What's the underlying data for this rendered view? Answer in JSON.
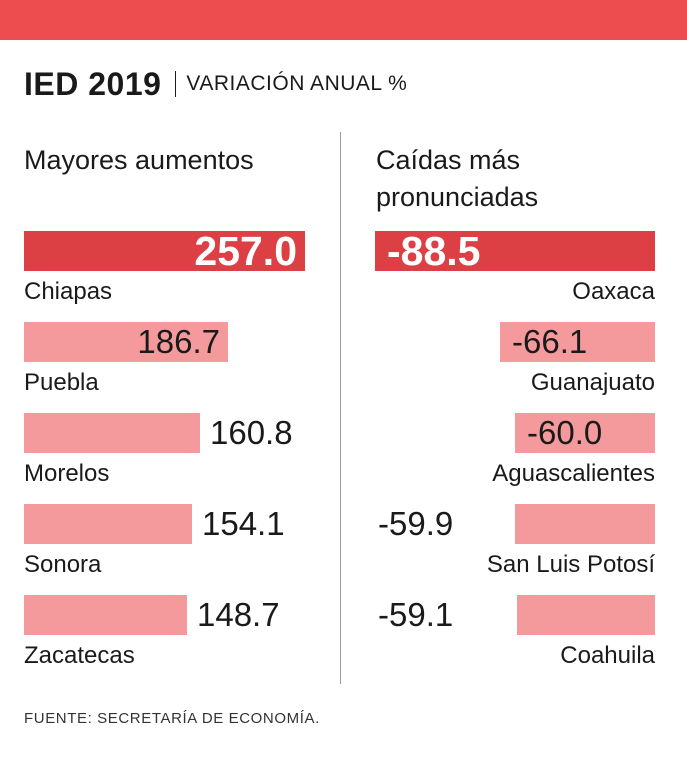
{
  "colors": {
    "top_band": "#ee4d50",
    "highlight_bar": "#dc3f44",
    "bar": "#f49a9c",
    "highlight_text": "#ffffff",
    "text": "#1a1a1a"
  },
  "header": {
    "title": "IED 2019",
    "subtitle": "VARIACIÓN ANUAL %"
  },
  "chart_data": [
    {
      "type": "bar",
      "orientation": "horizontal",
      "title": "Mayores aumentos",
      "unit": "%",
      "categories": [
        "Chiapas",
        "Puebla",
        "Morelos",
        "Sonora",
        "Zacatecas"
      ],
      "values": [
        257.0,
        186.7,
        160.8,
        154.1,
        148.7
      ],
      "value_labels": [
        "257.0",
        "186.7",
        "160.8",
        "154.1",
        "148.7"
      ]
    },
    {
      "type": "bar",
      "orientation": "horizontal",
      "title": "Caídas más pronunciadas",
      "unit": "%",
      "categories": [
        "Oaxaca",
        "Guanajuato",
        "Aguascalientes",
        "San Luis Potosí",
        "Coahuila"
      ],
      "values": [
        -88.5,
        -66.1,
        -60.0,
        -59.9,
        -59.1
      ],
      "value_labels": [
        "-88.5",
        "-66.1",
        "-60.0",
        "-59.9",
        "-59.1"
      ]
    }
  ],
  "footer": {
    "source": "FUENTE: SECRETARÍA DE ECONOMÍA."
  }
}
